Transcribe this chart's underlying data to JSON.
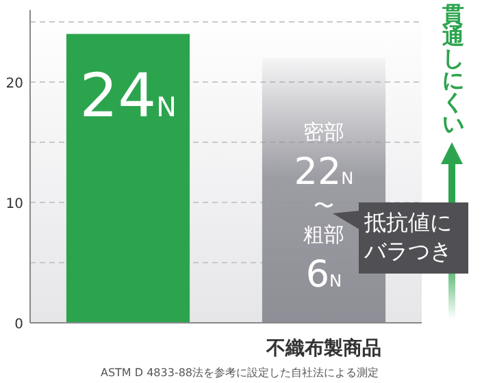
{
  "chart_data": {
    "type": "bar",
    "categories": [
      null,
      "不織布製商品"
    ],
    "values": [
      24,
      22
    ],
    "colors": [
      "#2ca44e",
      "#8e8e96"
    ],
    "value_labels": [
      "24N",
      "密部22N〜粗部6N"
    ],
    "ylim": [
      0,
      26
    ],
    "yticks": [
      0,
      {
        "value": 5,
        "label": null
      },
      10,
      {
        "value": 15,
        "label": null
      },
      20,
      {
        "value": 25,
        "label": null
      }
    ],
    "grid": "y",
    "annotations": [
      "貫通しにくい",
      "抵抗値にバラつき",
      "ASTM D 4833-88法を参考に設定した自社法による測定"
    ]
  }
}
